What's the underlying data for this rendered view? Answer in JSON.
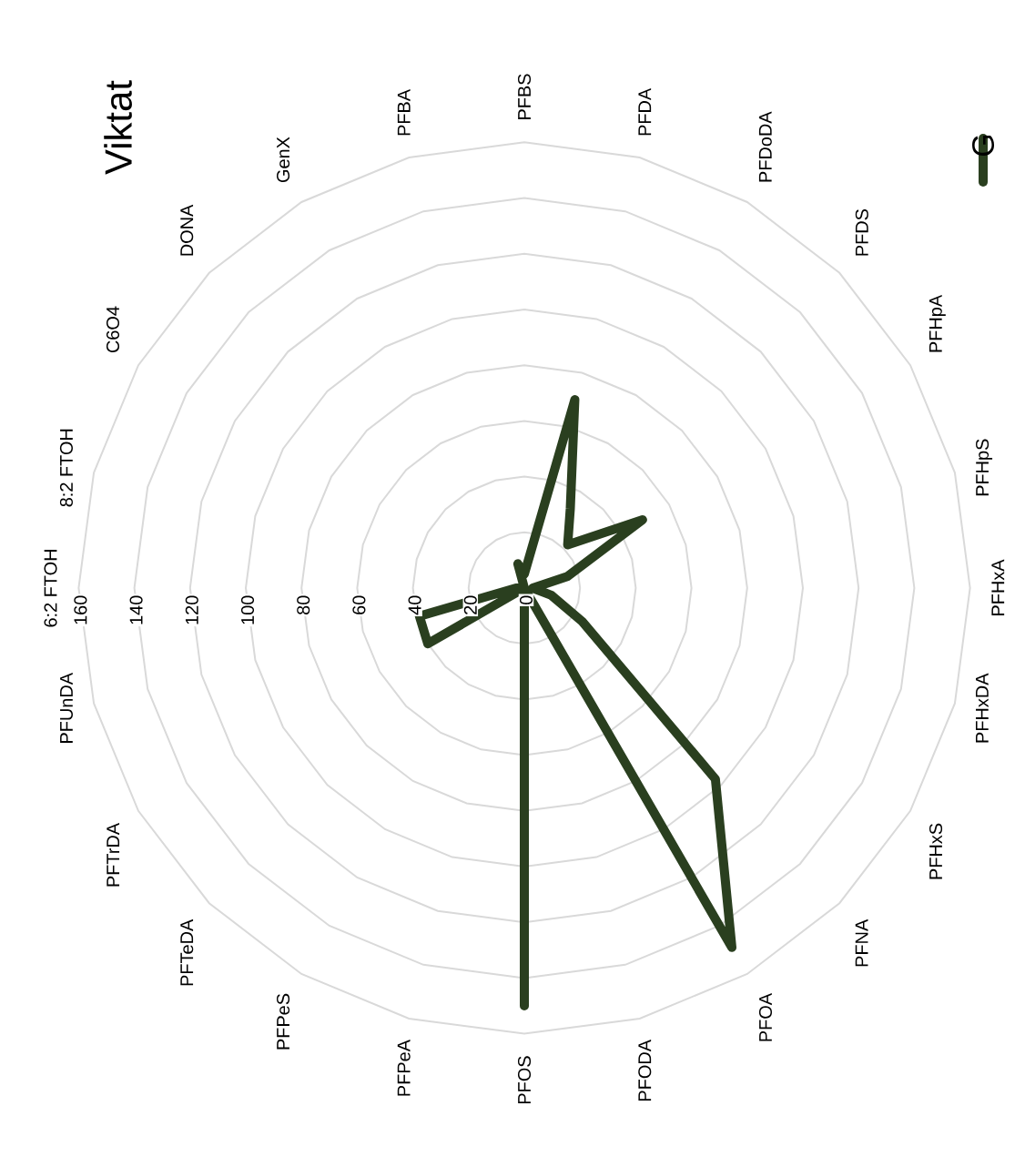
{
  "chart_data": {
    "type": "radar",
    "title": "Viktat",
    "categories": [
      "6:2 FTOH",
      "8:2 FTOH",
      "C6O4",
      "DONA",
      "GenX",
      "PFBA",
      "PFBS",
      "PFDA",
      "PFDoDA",
      "PFDS",
      "PFHpA",
      "PFHpS",
      "PFHxA",
      "PFHxDA",
      "PFHxS",
      "PFNA",
      "PFOA",
      "PFODA",
      "PFOS",
      "PFPeA",
      "PFPeS",
      "PFTeDA",
      "PFTrDA",
      "PFUnDA"
    ],
    "series": [
      {
        "name": "G",
        "color": "#2a3f1f",
        "values": [
          3,
          0,
          0,
          0,
          0,
          9,
          5,
          70,
          33,
          22,
          49,
          16,
          3,
          10,
          24,
          97,
          149,
          0,
          150,
          0,
          0,
          0,
          40,
          39
        ]
      }
    ],
    "ylim": [
      0,
      160
    ],
    "yticks": [
      0,
      20,
      40,
      60,
      80,
      100,
      120,
      140,
      160
    ],
    "grid": true,
    "legend": "top right",
    "marker": "none",
    "line_style": "solid"
  }
}
